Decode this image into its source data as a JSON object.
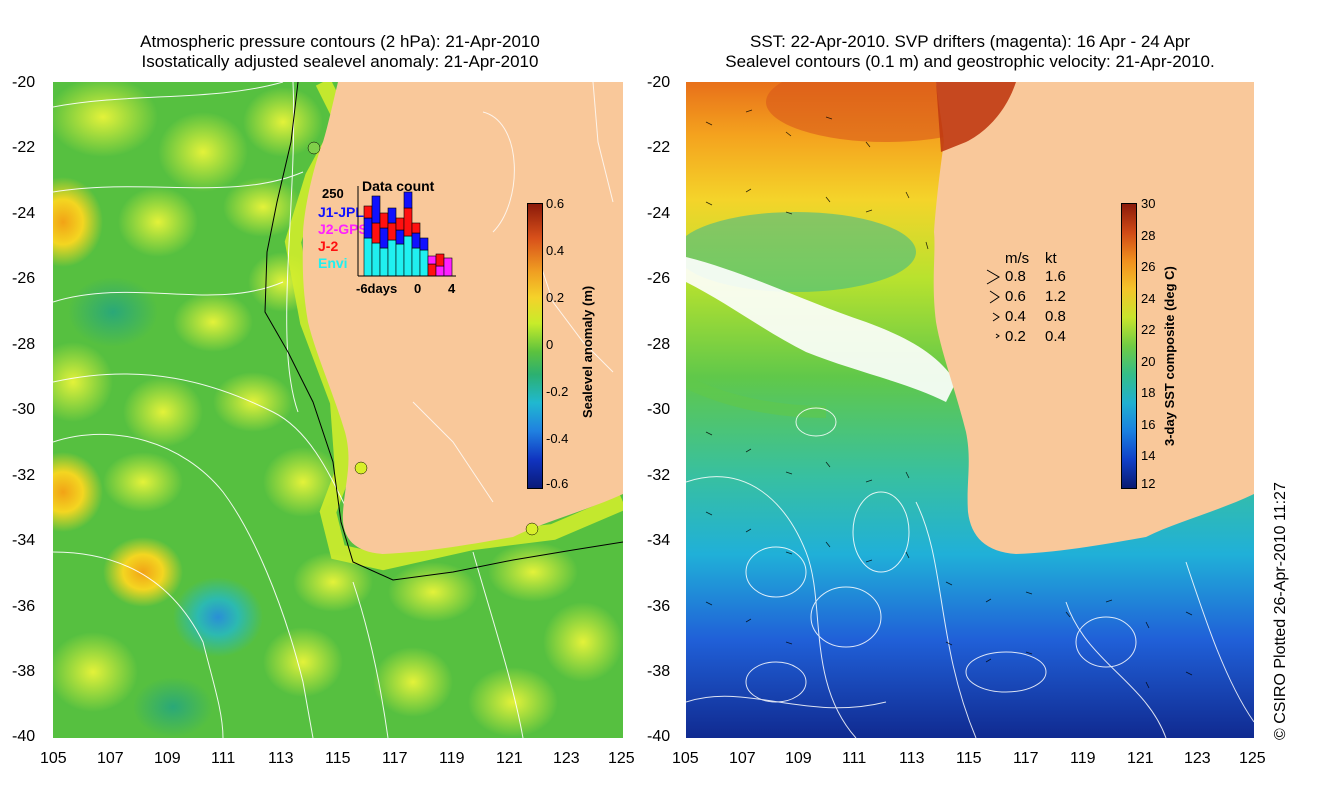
{
  "left_panel": {
    "title_line1": "Atmospheric pressure contours (2 hPa): 21-Apr-2010",
    "title_line2": "Isostatically adjusted sealevel anomaly: 21-Apr-2010",
    "colorbar": {
      "label": "Sealevel anomaly (m)",
      "ticks": [
        "0.6",
        "0.4",
        "0.2",
        "0",
        "-0.2",
        "-0.4",
        "-0.6"
      ],
      "range": [
        -0.6,
        0.6
      ]
    },
    "data_count": {
      "title": "Data count",
      "y_tick": "250",
      "x_ticks": [
        "-6days",
        "0",
        "4"
      ],
      "legend": [
        {
          "label": "J1-JPL",
          "color": "#1010ff"
        },
        {
          "label": "J2-GPS",
          "color": "#ff20ff"
        },
        {
          "label": "J-2",
          "color": "#ff1010"
        },
        {
          "label": "Envi",
          "color": "#20f0f0"
        }
      ]
    }
  },
  "right_panel": {
    "title_line1": "SST: 22-Apr-2010. SVP drifters (magenta): 16 Apr - 24 Apr",
    "title_line2": "Sealevel contours (0.1 m) and geostrophic velocity: 21-Apr-2010.",
    "colorbar": {
      "label": "3-day SST composite (deg C)",
      "ticks": [
        "30",
        "28",
        "26",
        "24",
        "22",
        "20",
        "18",
        "16",
        "14",
        "12"
      ],
      "range": [
        12,
        30
      ]
    },
    "velocity_key": {
      "header_ms": "m/s",
      "header_kt": "kt",
      "rows": [
        {
          "ms": "0.8",
          "kt": "1.6"
        },
        {
          "ms": "0.6",
          "kt": "1.2"
        },
        {
          "ms": "0.4",
          "kt": "0.8"
        },
        {
          "ms": "0.2",
          "kt": "0.4"
        }
      ]
    }
  },
  "axes": {
    "y_ticks": [
      "-20",
      "-22",
      "-24",
      "-26",
      "-28",
      "-30",
      "-32",
      "-34",
      "-36",
      "-38",
      "-40"
    ],
    "x_ticks": [
      "105",
      "107",
      "109",
      "111",
      "113",
      "115",
      "117",
      "119",
      "121",
      "123",
      "125"
    ],
    "lon_range": [
      105,
      125
    ],
    "lat_range": [
      -40,
      -20
    ]
  },
  "copyright": "© CSIRO Plotted 26-Apr-2010 11:27",
  "colors": {
    "land": "#f9c89a",
    "ocean_green": "#4ec03c",
    "anomaly_yellow": "#d8ef2a"
  }
}
